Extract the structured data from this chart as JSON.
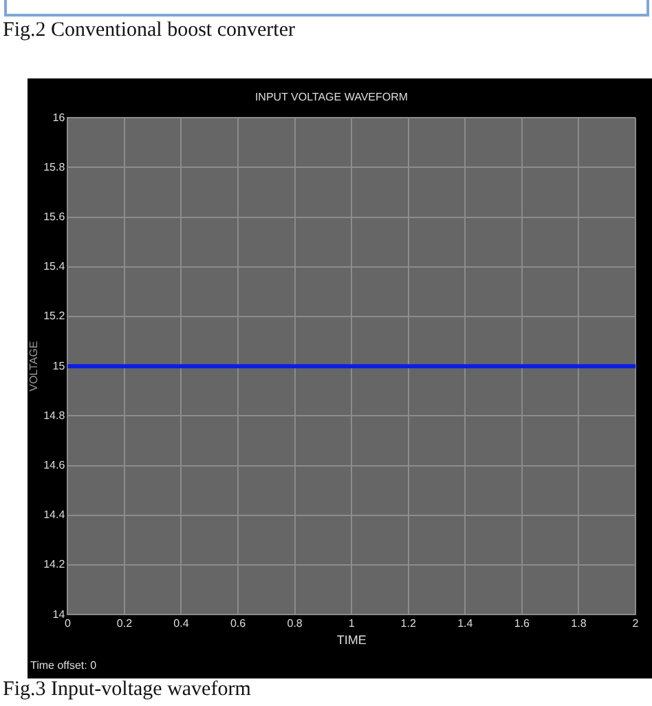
{
  "chart_data": {
    "type": "line",
    "title": "INPUT VOLTAGE WAVEFORM",
    "xlabel": "TIME",
    "ylabel": "VOLTAGE",
    "annotations": [
      "Fig.2 Conventional boost converter",
      "Time offset:  0",
      "Fig.3 Input-voltage waveform"
    ],
    "x": [
      0,
      2
    ],
    "series": [
      {
        "color": "#0a1ee6",
        "values": [
          15,
          15
        ]
      }
    ],
    "xlim": [
      0,
      2
    ],
    "xticks": [
      0,
      0.2,
      0.4,
      0.6,
      0.8,
      1,
      1.2,
      1.4,
      1.6,
      1.8,
      2
    ],
    "ylim": [
      14,
      16
    ],
    "yticks": [
      14,
      14.2,
      14.4,
      14.6,
      14.8,
      15,
      15.2,
      15.4,
      15.6,
      15.8,
      16
    ],
    "grid": true,
    "legend": false,
    "marker": "none",
    "line_style": "solid"
  }
}
